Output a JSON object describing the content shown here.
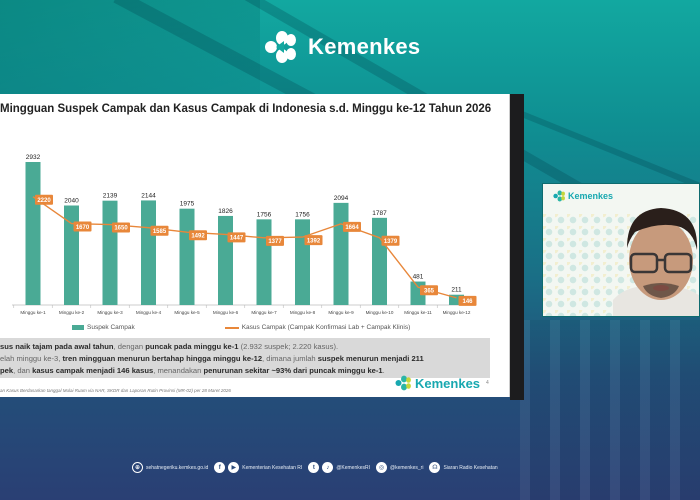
{
  "header": {
    "logo_text": "Kemenkes"
  },
  "slide": {
    "title": "Mingguan Suspek Campak dan Kasus Campak di Indonesia s.d. Minggu ke-12 Tahun 2026",
    "legend": {
      "bar_label": "Suspek Campak",
      "line_label": "Kasus Campak (Campak Konfirmasi Lab + Campak Klinis)"
    },
    "summary": {
      "line1": {
        "b1": "sus naik tajam pada awal tahun",
        "t1": ", dengan ",
        "b2": "puncak pada minggu ke-1",
        "t2": " (2.932 suspek; 2.220 kasus)."
      },
      "line2": {
        "t1": "elah minggu ke-3, ",
        "b1": "tren mingguan menurun bertahap hingga minggu ke-12",
        "t2": ", dimana jumlah ",
        "b2": "suspek menurun menjadi 211"
      },
      "line3": {
        "b1": "pek",
        "t1": ", dan ",
        "b2": "kasus campak menjadi 146 kasus",
        "t2": ", menandakan ",
        "b3": "penurunan sekitar ~93% dari puncak minggu ke-1",
        "t3": "."
      }
    },
    "source_note": "an Kasus Berdasarkan tanggal Mulai Ruam via NAR, SKDR dan Laporan Rutin Provinsi (MR-02) per 28 Maret 2026",
    "logo_text": "Kemenkes",
    "page_number": "4"
  },
  "chart_data": {
    "type": "bar",
    "title": "Mingguan Suspek Campak dan Kasus Campak di Indonesia s.d. Minggu ke-12 Tahun 2026",
    "xlabel": "",
    "ylabel": "",
    "categories": [
      "Minggu ke-1",
      "Minggu ke-2",
      "Minggu ke-3",
      "Minggu ke-4",
      "Minggu ke-5",
      "Minggu ke-6",
      "Minggu ke-7",
      "Minggu ke-8",
      "Minggu ke-9",
      "Minggu ke-10",
      "Minggu ke-11",
      "Minggu ke-12"
    ],
    "series": [
      {
        "name": "Suspek Campak",
        "type": "bar",
        "color": "#4aaa95",
        "values": [
          2932,
          2040,
          2139,
          2144,
          1975,
          1826,
          1756,
          1756,
          2094,
          1787,
          481,
          211
        ]
      },
      {
        "name": "Kasus Campak (Campak Konfirmasi Lab + Campak Klinis)",
        "type": "line",
        "color": "#e8873a",
        "values": [
          2220,
          1670,
          1650,
          1585,
          1492,
          1447,
          1377,
          1392,
          1664,
          1379,
          365,
          146
        ]
      }
    ],
    "ylim": [
      0,
      3000
    ],
    "grid": false,
    "legend_position": "bottom",
    "data_labels": true
  },
  "webcam": {
    "logo_text": "Kemenkes"
  },
  "footer": {
    "website": "sehatnegeriku.kemkes.go.id",
    "facebook_youtube": "Kementerian Kesehatan RI",
    "twitter_tiktok": "@KemenkesRI",
    "instagram": "@kemenkes_ri",
    "radio": "Siaran Radio Kesehatan"
  },
  "colors": {
    "bar": "#4aaa95",
    "line": "#e8873a",
    "brand_teal": "#18a8b0",
    "summary_bg": "#d9d9d9"
  }
}
